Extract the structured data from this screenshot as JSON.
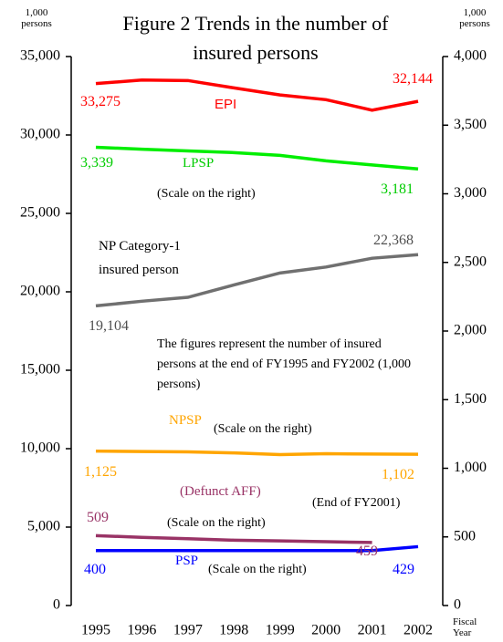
{
  "chart_data": {
    "type": "line",
    "title": "Figure 2 Trends in the number of insured persons",
    "y_label": "1,000 persons",
    "y2_label": "1,000 persons",
    "x_label": "Fiscal Year",
    "categories": [
      "1995",
      "1996",
      "1997",
      "1998",
      "1999",
      "2000",
      "2001",
      "2002"
    ],
    "ylim": [
      0,
      35000
    ],
    "yticks": [
      0,
      {
        "value": 5000,
        "label": "5,000"
      },
      {
        "value": 10000,
        "label": "10,000"
      },
      {
        "value": 15000,
        "label": "15,000"
      },
      {
        "value": 20000,
        "label": "20,000"
      },
      {
        "value": 25000,
        "label": "25,000"
      },
      {
        "value": 30000,
        "label": "30,000"
      },
      {
        "value": 35000,
        "label": "35,000"
      }
    ],
    "y2lim": [
      0,
      4000
    ],
    "y2ticks": [
      0,
      500,
      {
        "value": 1000,
        "label": "1,000"
      },
      {
        "value": 1500,
        "label": "1,500"
      },
      {
        "value": 2000,
        "label": "2,000"
      },
      {
        "value": 2500,
        "label": "2,500"
      },
      {
        "value": 3000,
        "label": "3,000"
      },
      {
        "value": 3500,
        "label": "3,500"
      },
      {
        "value": 4000,
        "label": "4,000"
      }
    ],
    "grid": false,
    "series": [
      {
        "name": "EPI",
        "color": "#ff0000",
        "values": [
          33275,
          33500,
          33470,
          33000,
          32550,
          32250,
          31580,
          32144
        ],
        "value_labels": [
          "33,275",
          null,
          null,
          null,
          null,
          null,
          null,
          "32,144"
        ]
      },
      {
        "name": "LPSP",
        "color": "#00ee00",
        "axis": "y2",
        "values": [
          3339,
          3325,
          3312,
          3300,
          3280,
          3240,
          3210,
          3181
        ],
        "value_labels": [
          "3,339",
          null,
          null,
          null,
          null,
          null,
          null,
          "3,181"
        ]
      },
      {
        "name": "NP Category-1 insured person",
        "color": "#707070",
        "values": [
          19104,
          19400,
          19650,
          20440,
          21200,
          21580,
          22140,
          22368
        ],
        "value_labels": [
          "19,104",
          null,
          null,
          null,
          null,
          null,
          null,
          "22,368"
        ]
      },
      {
        "name": "NPSP",
        "color": "#ffa500",
        "axis": "y2",
        "values": [
          1125,
          1122,
          1120,
          1112,
          1100,
          1106,
          1104,
          1102
        ],
        "value_labels": [
          "1,125",
          null,
          null,
          null,
          null,
          null,
          null,
          "1,102"
        ]
      },
      {
        "name": "(Defunct AFF)",
        "color": "#993366",
        "axis": "y2",
        "values": [
          509,
          497,
          487,
          476,
          471,
          465,
          459,
          null
        ],
        "value_labels": [
          "509",
          null,
          null,
          null,
          null,
          null,
          "459",
          null
        ]
      },
      {
        "name": "PSP",
        "color": "#0000ff",
        "axis": "y2",
        "values": [
          400,
          400,
          400,
          400,
          400,
          400,
          400,
          429
        ],
        "value_labels": [
          "400",
          null,
          null,
          null,
          null,
          null,
          null,
          "429"
        ]
      }
    ],
    "annotations": [
      "(Scale on the right)",
      "(Scale on the right)",
      "(Defunct AFF)",
      "(Scale on the right)",
      "(Scale on the right)",
      "(End of FY2001)",
      "The figures represent the number of insured persons at the end of FY1995 and FY2002 (1,000 persons)"
    ]
  }
}
